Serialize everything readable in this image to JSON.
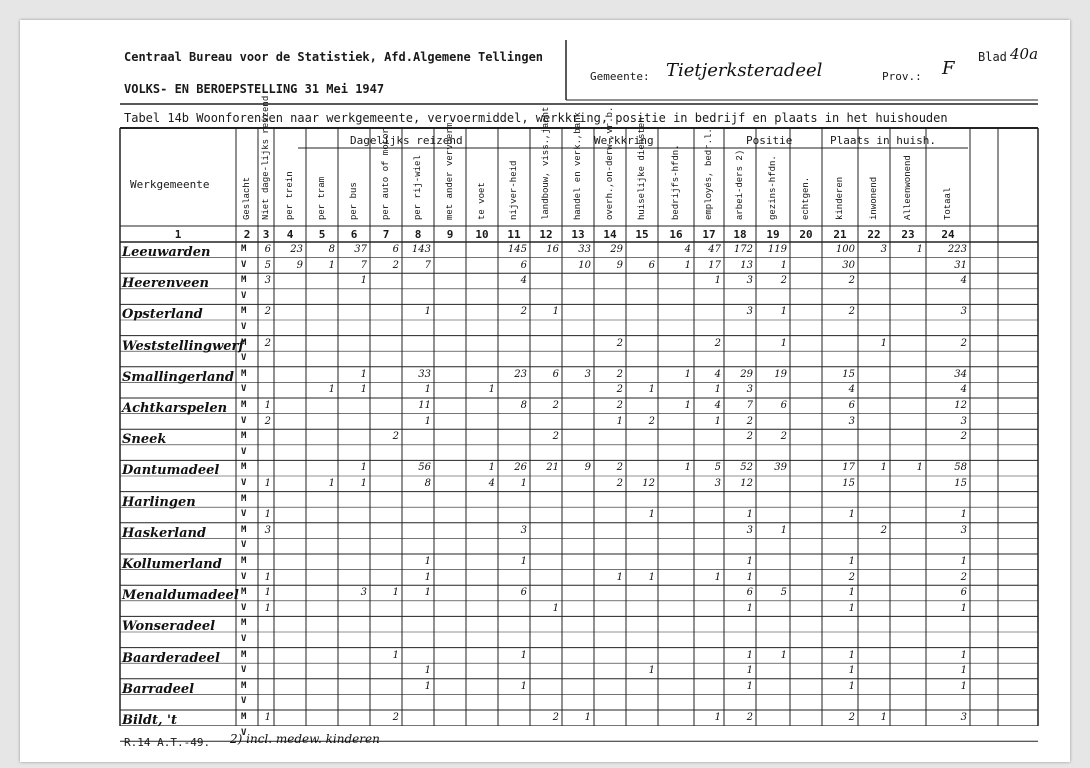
{
  "header": {
    "org": "Centraal Bureau voor de Statistiek, Afd.Algemene Tellingen",
    "census": "VOLKS- EN BEROEPSTELLING 31 Mei 1947",
    "blad_label": "Blad",
    "blad_value": "40a",
    "gemeente_label": "Gemeente:",
    "gemeente_value": "Tietjerksteradeel",
    "prov_label": "Prov.:",
    "prov_value": "F"
  },
  "table_title": "Tabel 14b Woonforensen naar werkgemeente, vervoermiddel, werkkring, positie in bedrijf en plaats in het huishouden",
  "groups": {
    "dagelijks": "Dagelijks reizend",
    "werkkring": "Werkkring",
    "positie": "Positie",
    "plaats": "Plaats in huish."
  },
  "columns": [
    "Werkgemeente",
    "Geslacht",
    "Niet dage-lijks reizend",
    "per trein",
    "per tram",
    "per bus",
    "per auto of motor",
    "per rij-wiel",
    "met ander vervoerm.",
    "te voet",
    "nijver-heid",
    "landbouw, viss.,jacht",
    "handel en verk.,bank",
    "overh.,on-derw.,vr.b.",
    "huiselijke diensten",
    "bedrijfs-hfdn.",
    "employés, bedr.l.",
    "arbei-ders 2)",
    "gezins-hfdn.",
    "echtgen.",
    "kinderen",
    "inwonend",
    "Alleenwonend",
    "Totaal"
  ],
  "column_numbers": [
    "1",
    "2",
    "3",
    "4",
    "5",
    "6",
    "7",
    "8",
    "9",
    "10",
    "11",
    "12",
    "13",
    "14",
    "15",
    "16",
    "17",
    "18",
    "19",
    "20",
    "21",
    "22",
    "23",
    "24"
  ],
  "rows": [
    {
      "name": "Leeuwarden",
      "M": [
        "6",
        "23",
        "8",
        "37",
        "6",
        "143",
        "",
        "",
        "145",
        "16",
        "33",
        "29",
        "",
        "4",
        "47",
        "172",
        "119",
        "",
        "100",
        "3",
        "1",
        "223"
      ],
      "V": [
        "5",
        "9",
        "1",
        "7",
        "2",
        "7",
        "",
        "",
        "6",
        "",
        "10",
        "9",
        "6",
        "1",
        "17",
        "13",
        "1",
        "",
        "30",
        "",
        "",
        "31"
      ]
    },
    {
      "name": "Heerenveen",
      "M": [
        "3",
        "",
        "",
        "1",
        "",
        "",
        "",
        "",
        "4",
        "",
        "",
        "",
        "",
        "",
        "1",
        "3",
        "2",
        "",
        "2",
        "",
        "",
        "4"
      ],
      "V": []
    },
    {
      "name": "Opsterland",
      "M": [
        "2",
        "",
        "",
        "",
        "",
        "1",
        "",
        "",
        "2",
        "1",
        "",
        "",
        "",
        "",
        "",
        "3",
        "1",
        "",
        "2",
        "",
        "",
        "3"
      ],
      "V": []
    },
    {
      "name": "Weststellingwerf",
      "M": [
        "2",
        "",
        "",
        "",
        "",
        "",
        "",
        "",
        "",
        "",
        "",
        "2",
        "",
        "",
        "2",
        "",
        "1",
        "",
        "",
        "1",
        "",
        "2"
      ],
      "V": []
    },
    {
      "name": "Smallingerland",
      "M": [
        "",
        "",
        "",
        "1",
        "",
        "33",
        "",
        "",
        "23",
        "6",
        "3",
        "2",
        "",
        "1",
        "4",
        "29",
        "19",
        "",
        "15",
        "",
        "",
        "34"
      ],
      "V": [
        "",
        "",
        "1",
        "1",
        "",
        "1",
        "",
        "1",
        "",
        "",
        "",
        "2",
        "1",
        "",
        "1",
        "3",
        "",
        "",
        "4",
        "",
        "",
        "4"
      ]
    },
    {
      "name": "Achtkarspelen",
      "M": [
        "1",
        "",
        "",
        "",
        "",
        "11",
        "",
        "",
        "8",
        "2",
        "",
        "2",
        "",
        "1",
        "4",
        "7",
        "6",
        "",
        "6",
        "",
        "",
        "12"
      ],
      "V": [
        "2",
        "",
        "",
        "",
        "",
        "1",
        "",
        "",
        "",
        "",
        "",
        "1",
        "2",
        "",
        "1",
        "2",
        "",
        "",
        "3",
        "",
        "",
        "3"
      ]
    },
    {
      "name": "Sneek",
      "M": [
        "",
        "",
        "",
        "",
        "2",
        "",
        "",
        "",
        "",
        "2",
        "",
        "",
        "",
        "",
        "",
        "2",
        "2",
        "",
        "",
        "",
        "",
        "2"
      ],
      "V": []
    },
    {
      "name": "Dantumadeel",
      "M": [
        "",
        "",
        "",
        "1",
        "",
        "56",
        "",
        "1",
        "26",
        "21",
        "9",
        "2",
        "",
        "1",
        "5",
        "52",
        "39",
        "",
        "17",
        "1",
        "1",
        "58"
      ],
      "V": [
        "1",
        "",
        "1",
        "1",
        "",
        "8",
        "",
        "4",
        "1",
        "",
        "",
        "2",
        "12",
        "",
        "3",
        "12",
        "",
        "",
        "15",
        "",
        "",
        "15"
      ]
    },
    {
      "name": "Harlingen",
      "M": [],
      "V": [
        "1",
        "",
        "",
        "",
        "",
        "",
        "",
        "",
        "",
        "",
        "",
        "",
        "1",
        "",
        "",
        "1",
        "",
        "",
        "1",
        "",
        "",
        "1"
      ]
    },
    {
      "name": "Haskerland",
      "M": [
        "3",
        "",
        "",
        "",
        "",
        "",
        "",
        "",
        "3",
        "",
        "",
        "",
        "",
        "",
        "",
        "3",
        "1",
        "",
        "",
        "2",
        "",
        "3"
      ],
      "V": []
    },
    {
      "name": "Kollumerland",
      "M": [
        "",
        "",
        "",
        "",
        "",
        "1",
        "",
        "",
        "1",
        "",
        "",
        "",
        "",
        "",
        "",
        "1",
        "",
        "",
        "1",
        "",
        "",
        "1"
      ],
      "V": [
        "1",
        "",
        "",
        "",
        "",
        "1",
        "",
        "",
        "",
        "",
        "",
        "1",
        "1",
        "",
        "1",
        "1",
        "",
        "",
        "2",
        "",
        "",
        "2"
      ]
    },
    {
      "name": "Menaldumadeel",
      "M": [
        "1",
        "",
        "",
        "3",
        "1",
        "1",
        "",
        "",
        "6",
        "",
        "",
        "",
        "",
        "",
        "",
        "6",
        "5",
        "",
        "1",
        "",
        "",
        "6"
      ],
      "V": [
        "1",
        "",
        "",
        "",
        "",
        "",
        "",
        "",
        "",
        "1",
        "",
        "",
        "",
        "",
        "",
        "1",
        "",
        "",
        "1",
        "",
        "",
        "1"
      ]
    },
    {
      "name": "Wonseradeel",
      "M": [],
      "V": []
    },
    {
      "name": "Baarderadeel",
      "M": [
        "",
        "",
        "",
        "",
        "1",
        "",
        "",
        "",
        "1",
        "",
        "",
        "",
        "",
        "",
        "",
        "1",
        "1",
        "",
        "1",
        "",
        "",
        "1"
      ],
      "V": [
        "",
        "",
        "",
        "",
        "",
        "1",
        "",
        "",
        "",
        "",
        "",
        "",
        "1",
        "",
        "",
        "1",
        "",
        "",
        "1",
        "",
        "",
        "1"
      ]
    },
    {
      "name": "Barradeel",
      "M": [
        "",
        "",
        "",
        "",
        "",
        "1",
        "",
        "",
        "1",
        "",
        "",
        "",
        "",
        "",
        "",
        "1",
        "",
        "",
        "1",
        "",
        "",
        "1"
      ],
      "V": []
    },
    {
      "name": "Bildt, 't",
      "M": [
        "1",
        "",
        "",
        "",
        "2",
        "",
        "",
        "",
        "",
        "2",
        "1",
        "",
        "",
        "",
        "1",
        "2",
        "",
        "",
        "2",
        "1",
        "",
        "3"
      ],
      "V": []
    }
  ],
  "footer": {
    "form": "R.14 A.T.-49.",
    "note": "2) incl. medew. kinderen"
  }
}
